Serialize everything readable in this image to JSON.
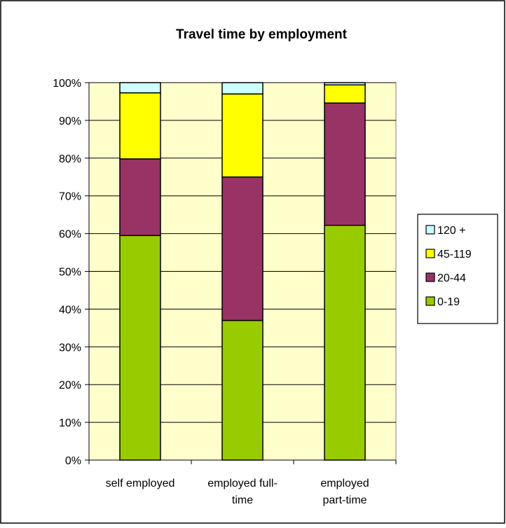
{
  "chart_data": {
    "type": "bar",
    "stacked": true,
    "title": "Travel time by employment",
    "categories": [
      [
        "self employed"
      ],
      [
        "employed full-",
        "time"
      ],
      [
        "employed",
        "part-time"
      ]
    ],
    "series": [
      {
        "name": "0-19",
        "color": "#99cc00",
        "values": [
          59.5,
          37.0,
          62.2
        ]
      },
      {
        "name": "20-44",
        "color": "#993366",
        "values": [
          20.3,
          38.0,
          32.4
        ]
      },
      {
        "name": "45-119",
        "color": "#ffff00",
        "values": [
          17.5,
          22.0,
          4.8
        ]
      },
      {
        "name": "120 +",
        "color": "#ccffff",
        "values": [
          2.7,
          3.0,
          0.6
        ]
      }
    ],
    "ylim": [
      0,
      100
    ],
    "yticks": [
      "0%",
      "10%",
      "20%",
      "30%",
      "40%",
      "50%",
      "60%",
      "70%",
      "80%",
      "90%",
      "100%"
    ],
    "grid": true,
    "legend_position": "right",
    "legend_order": [
      "120 +",
      "45-119",
      "20-44",
      "0-19"
    ],
    "plot_background": "#ffffcc"
  }
}
